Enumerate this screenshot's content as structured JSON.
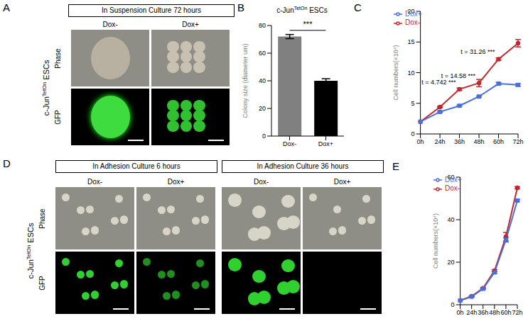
{
  "figure": {
    "panels": [
      "A",
      "B",
      "C",
      "D",
      "E"
    ],
    "A": {
      "header": "In Suspension Culture 72 hours",
      "row_label": {
        "base": "c-Jun",
        "sup": "TetOn",
        "after": "ESCs"
      },
      "columns": [
        "Dox-",
        "Dox+"
      ],
      "rows": [
        "Phase",
        "GFP"
      ]
    },
    "D": {
      "headers": [
        "In Adhesion Culture 6 hours",
        "In Adhesion Culture 36 hours"
      ],
      "row_label": {
        "base": "c-Jun",
        "sup": "TetOn",
        "after": "ESCs"
      },
      "columns": [
        "Dox-",
        "Dox+"
      ],
      "rows": [
        "Phase",
        "GFP"
      ]
    }
  },
  "chart_data": [
    {
      "type": "bar",
      "title": {
        "base": "c-Jun",
        "sup": "TetOn",
        "after": "ESCs"
      },
      "y_label": "Colony size (diameter um)",
      "categories": [
        "Dox-",
        "Dox+"
      ],
      "values": [
        72,
        40
      ],
      "errors": [
        1.5,
        1.5
      ],
      "colors": [
        "#808080",
        "#000000"
      ],
      "ylim": [
        0,
        80
      ],
      "yticks": [
        0,
        20,
        40,
        60,
        80
      ],
      "grid": false,
      "annotations": [
        {
          "text": "***"
        }
      ]
    },
    {
      "type": "line",
      "y_label": "Cell numbers(×10⁴)",
      "categories": [
        "0h",
        "24h",
        "36h",
        "48h",
        "60h",
        "72h"
      ],
      "series": [
        {
          "name": "Dox-",
          "color": "#c0282d",
          "marker": "circle",
          "values": [
            2,
            4.4,
            7.3,
            8.3,
            12.2,
            14.8
          ],
          "errors": [
            0,
            0.1,
            0.2,
            0.6,
            0.2,
            0.6
          ]
        },
        {
          "name": "Dox+",
          "color": "#4a6fd8",
          "marker": "square",
          "values": [
            2,
            3.6,
            4.6,
            6.1,
            8.2,
            8.0
          ],
          "errors": [
            0,
            0.1,
            0.1,
            0.1,
            0.2,
            0.2
          ]
        }
      ],
      "ylim": [
        0,
        20
      ],
      "yticks": [
        0,
        5,
        10,
        15,
        20
      ],
      "grid": false,
      "legend": "top-left",
      "annotations": [
        {
          "x": "36h",
          "text": "t = 4.742 ***"
        },
        {
          "x": "48h",
          "text": "t = 14.58 ***"
        },
        {
          "x": "60h",
          "text": "t = 31.26 ***"
        }
      ]
    },
    {
      "type": "line",
      "y_label": "Cell numbers(×10⁴)",
      "categories": [
        "0h",
        "24h",
        "36h",
        "48h",
        "60h",
        "72h"
      ],
      "series": [
        {
          "name": "Dox-",
          "color": "#c0282d",
          "marker": "circle",
          "values": [
            2,
            4,
            7.8,
            16,
            32,
            55
          ],
          "errors": [
            0,
            0.2,
            0.3,
            0.5,
            2,
            0.5
          ]
        },
        {
          "name": "Dox+",
          "color": "#4a6fd8",
          "marker": "square",
          "values": [
            2,
            3.8,
            7.5,
            15.2,
            30.5,
            49
          ],
          "errors": [
            0,
            0.2,
            0.3,
            0.5,
            1,
            0.5
          ]
        }
      ],
      "ylim": [
        0,
        60
      ],
      "yticks": [
        0,
        20,
        40,
        60
      ],
      "grid": false,
      "legend": "top-left"
    }
  ]
}
